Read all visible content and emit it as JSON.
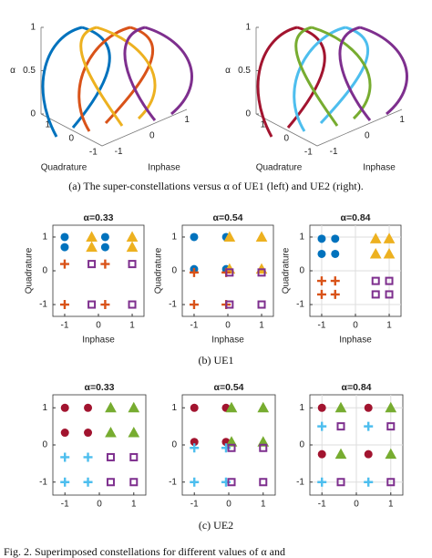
{
  "chart_data": [
    {
      "type": "line3d",
      "zlabel": "α",
      "xlabel": "Inphase",
      "ylabel": "Quadrature",
      "xlim": [
        -1.2,
        1.2
      ],
      "ylim": [
        -1.2,
        1.2
      ],
      "zlim": [
        0,
        1
      ],
      "xticks": [
        -1,
        0,
        1
      ],
      "yticks": [
        -1,
        0,
        1
      ],
      "zticks": [
        0,
        0.5,
        1
      ],
      "colors": [
        "#0072bd",
        "#d95319",
        "#edb120",
        "#7e2f8e"
      ]
    },
    {
      "type": "line3d",
      "zlabel": "α",
      "xlabel": "Inphase",
      "ylabel": "Quadrature",
      "xlim": [
        -1.2,
        1.2
      ],
      "ylim": [
        -1.2,
        1.2
      ],
      "zlim": [
        0,
        1
      ],
      "xticks": [
        -1,
        0,
        1
      ],
      "yticks": [
        -1,
        0,
        1
      ],
      "zticks": [
        0,
        0.5,
        1
      ],
      "colors": [
        "#a2142f",
        "#4dbeee",
        "#77ac30",
        "#7e2f8e"
      ]
    },
    {
      "type": "scatter",
      "title": "α=0.33",
      "xlabel": "Inphase",
      "ylabel": "Quadrature",
      "xlim": [
        -1.35,
        1.35
      ],
      "ylim": [
        -1.35,
        1.35
      ],
      "xticks": [
        -1,
        0,
        1
      ],
      "yticks": [
        -1,
        0,
        1
      ],
      "grid": false,
      "series": [
        {
          "marker": "circle",
          "color": "#0072bd",
          "x": [
            -1,
            0.2,
            -1,
            0.2
          ],
          "y": [
            1,
            1,
            0.7,
            0.7
          ]
        },
        {
          "marker": "triangle",
          "color": "#edb120",
          "x": [
            -0.2,
            1,
            -0.2,
            1
          ],
          "y": [
            1,
            1,
            0.7,
            0.7
          ]
        },
        {
          "marker": "plus",
          "color": "#d95319",
          "x": [
            -1,
            0.2,
            -1,
            0.2
          ],
          "y": [
            0.2,
            0.2,
            -1,
            -1
          ]
        },
        {
          "marker": "square",
          "color": "#7e2f8e",
          "x": [
            -0.2,
            1,
            -0.2,
            1
          ],
          "y": [
            0.2,
            0.2,
            -1,
            -1
          ]
        }
      ]
    },
    {
      "type": "scatter",
      "title": "α=0.54",
      "xlabel": "Inphase",
      "ylabel": "Quadrature",
      "xlim": [
        -1.35,
        1.35
      ],
      "ylim": [
        -1.35,
        1.35
      ],
      "xticks": [
        -1,
        0,
        1
      ],
      "yticks": [
        -1,
        0,
        1
      ],
      "grid": false,
      "series": [
        {
          "marker": "circle",
          "color": "#0072bd",
          "x": [
            -1,
            -0.05,
            -1,
            -0.05
          ],
          "y": [
            1,
            1,
            0.05,
            0.05
          ]
        },
        {
          "marker": "triangle",
          "color": "#edb120",
          "x": [
            0.05,
            1,
            0.05,
            1
          ],
          "y": [
            1,
            1,
            0.05,
            0.05
          ]
        },
        {
          "marker": "plus",
          "color": "#d95319",
          "x": [
            -1,
            -0.05,
            -1,
            -0.05
          ],
          "y": [
            -0.05,
            -0.05,
            -1,
            -1
          ]
        },
        {
          "marker": "square",
          "color": "#7e2f8e",
          "x": [
            0.05,
            1,
            0.05,
            1
          ],
          "y": [
            -0.05,
            -0.05,
            -1,
            -1
          ]
        }
      ]
    },
    {
      "type": "scatter",
      "title": "α=0.84",
      "xlabel": "Inphase",
      "ylabel": "Quadrature",
      "xlim": [
        -1.35,
        1.35
      ],
      "ylim": [
        -1.35,
        1.35
      ],
      "xticks": [
        -1,
        0,
        1
      ],
      "yticks": [
        -1,
        0,
        1
      ],
      "grid": true,
      "series": [
        {
          "marker": "circle",
          "color": "#0072bd",
          "x": [
            -1,
            -0.6,
            -1,
            -0.6
          ],
          "y": [
            0.95,
            0.95,
            0.5,
            0.5
          ]
        },
        {
          "marker": "triangle",
          "color": "#edb120",
          "x": [
            0.6,
            1,
            0.6,
            1
          ],
          "y": [
            0.95,
            0.95,
            0.5,
            0.5
          ]
        },
        {
          "marker": "plus",
          "color": "#d95319",
          "x": [
            -1,
            -0.6,
            -1,
            -0.6
          ],
          "y": [
            -0.3,
            -0.3,
            -0.7,
            -0.7
          ]
        },
        {
          "marker": "square",
          "color": "#7e2f8e",
          "x": [
            0.6,
            1,
            0.6,
            1
          ],
          "y": [
            -0.3,
            -0.3,
            -0.7,
            -0.7
          ]
        }
      ]
    },
    {
      "type": "scatter",
      "title": "α=0.33",
      "xlim": [
        -1.35,
        1.35
      ],
      "ylim": [
        -1.35,
        1.35
      ],
      "xticks": [
        -1,
        0,
        1
      ],
      "yticks": [
        -1,
        0,
        1
      ],
      "grid": false,
      "series": [
        {
          "marker": "circle",
          "color": "#a2142f",
          "x": [
            -1,
            -0.33,
            -1,
            -0.33
          ],
          "y": [
            1,
            1,
            0.33,
            0.33
          ]
        },
        {
          "marker": "triangle",
          "color": "#77ac30",
          "x": [
            0.33,
            1,
            0.33,
            1
          ],
          "y": [
            1,
            1,
            0.33,
            0.33
          ]
        },
        {
          "marker": "plus",
          "color": "#4dbeee",
          "x": [
            -1,
            -0.33,
            -1,
            -0.33
          ],
          "y": [
            -0.33,
            -0.33,
            -1,
            -1
          ]
        },
        {
          "marker": "square",
          "color": "#7e2f8e",
          "x": [
            0.33,
            1,
            0.33,
            1
          ],
          "y": [
            -0.33,
            -0.33,
            -1,
            -1
          ]
        }
      ]
    },
    {
      "type": "scatter",
      "title": "α=0.54",
      "xlim": [
        -1.35,
        1.35
      ],
      "ylim": [
        -1.35,
        1.35
      ],
      "xticks": [
        -1,
        0,
        1
      ],
      "yticks": [
        -1,
        0,
        1
      ],
      "grid": false,
      "series": [
        {
          "marker": "circle",
          "color": "#a2142f",
          "x": [
            -1,
            -0.08,
            -1,
            -0.08
          ],
          "y": [
            1,
            1,
            0.08,
            0.08
          ]
        },
        {
          "marker": "triangle",
          "color": "#77ac30",
          "x": [
            0.08,
            1,
            0.08,
            1
          ],
          "y": [
            1,
            1,
            0.08,
            0.08
          ]
        },
        {
          "marker": "plus",
          "color": "#4dbeee",
          "x": [
            -1,
            -0.08,
            -1,
            -0.08
          ],
          "y": [
            -0.08,
            -0.08,
            -1,
            -1
          ]
        },
        {
          "marker": "square",
          "color": "#7e2f8e",
          "x": [
            0.08,
            1,
            0.08,
            1
          ],
          "y": [
            -0.08,
            -0.08,
            -1,
            -1
          ]
        }
      ]
    },
    {
      "type": "scatter",
      "title": "α=0.84",
      "xlim": [
        -1.35,
        1.35
      ],
      "ylim": [
        -1.35,
        1.35
      ],
      "xticks": [
        -1,
        0,
        1
      ],
      "yticks": [
        -1,
        0,
        1
      ],
      "grid": true,
      "series": [
        {
          "marker": "circle",
          "color": "#a2142f",
          "x": [
            -1,
            0.35,
            -1,
            0.35
          ],
          "y": [
            1,
            1,
            -0.25,
            -0.25
          ]
        },
        {
          "marker": "triangle",
          "color": "#77ac30",
          "x": [
            -0.45,
            1,
            -0.45,
            1
          ],
          "y": [
            1,
            1,
            -0.25,
            -0.25
          ]
        },
        {
          "marker": "plus",
          "color": "#4dbeee",
          "x": [
            -1,
            0.35,
            -1,
            0.35
          ],
          "y": [
            0.5,
            0.5,
            -1,
            -1
          ]
        },
        {
          "marker": "square",
          "color": "#7e2f8e",
          "x": [
            -0.45,
            1,
            -0.45,
            1
          ],
          "y": [
            0.5,
            0.5,
            -1,
            -1
          ]
        }
      ]
    }
  ],
  "captions": {
    "a": "(a)  The super-constellations versus α of UE1 (left) and UE2 (right).",
    "b": "(b)  UE1",
    "c": "(c)  UE2",
    "figure": "Fig. 2.  Superimposed constellations for different values of α and"
  }
}
